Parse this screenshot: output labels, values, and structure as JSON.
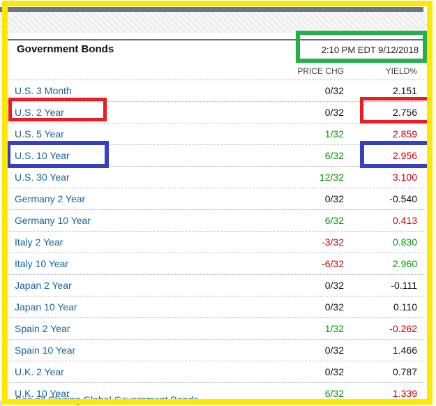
{
  "header": {
    "title": "Government Bonds",
    "timestamp": "2:10 PM EDT 9/12/2018"
  },
  "columns": [
    "PRICE CHG",
    "YIELD%"
  ],
  "table": {
    "rows": [
      {
        "label": "U.S. 3 Month",
        "price_chg": "0/32",
        "chg_color": "flat",
        "yield": "2.151",
        "yield_color": "flat"
      },
      {
        "label": "U.S. 2 Year",
        "price_chg": "0/32",
        "chg_color": "flat",
        "yield": "2.756",
        "yield_color": "flat"
      },
      {
        "label": "U.S. 5 Year",
        "price_chg": "1/32",
        "chg_color": "up",
        "yield": "2.859",
        "yield_color": "down"
      },
      {
        "label": "U.S. 10 Year",
        "price_chg": "6/32",
        "chg_color": "up",
        "yield": "2.956",
        "yield_color": "down"
      },
      {
        "label": "U.S. 30 Year",
        "price_chg": "12/32",
        "chg_color": "up",
        "yield": "3.100",
        "yield_color": "down"
      },
      {
        "label": "Germany 2 Year",
        "price_chg": "0/32",
        "chg_color": "flat",
        "yield": "-0.540",
        "yield_color": "flat"
      },
      {
        "label": "Germany 10 Year",
        "price_chg": "6/32",
        "chg_color": "up",
        "yield": "0.413",
        "yield_color": "down"
      },
      {
        "label": "Italy 2 Year",
        "price_chg": "-3/32",
        "chg_color": "down",
        "yield": "0.830",
        "yield_color": "up"
      },
      {
        "label": "Italy 10 Year",
        "price_chg": "-6/32",
        "chg_color": "down",
        "yield": "2.960",
        "yield_color": "up"
      },
      {
        "label": "Japan 2 Year",
        "price_chg": "0/32",
        "chg_color": "flat",
        "yield": "-0.111",
        "yield_color": "flat"
      },
      {
        "label": "Japan 10 Year",
        "price_chg": "0/32",
        "chg_color": "flat",
        "yield": "0.110",
        "yield_color": "flat"
      },
      {
        "label": "Spain 2 Year",
        "price_chg": "1/32",
        "chg_color": "up",
        "yield": "-0.262",
        "yield_color": "down"
      },
      {
        "label": "Spain 10 Year",
        "price_chg": "0/32",
        "chg_color": "flat",
        "yield": "1.466",
        "yield_color": "flat"
      },
      {
        "label": "U.K. 2 Year",
        "price_chg": "0/32",
        "chg_color": "flat",
        "yield": "0.787",
        "yield_color": "flat"
      },
      {
        "label": "U.K. 10 Year",
        "price_chg": "6/32",
        "chg_color": "up",
        "yield": "1.339",
        "yield_color": "down"
      }
    ]
  },
  "footer": {
    "link_label": "See all Closing Global Government Bonds"
  },
  "colors": {
    "up": "#009900",
    "down": "#cc0000",
    "neutral": "#111111",
    "link": "#15629e"
  },
  "annotations": {
    "frame_color": "#ffe800",
    "red_box_color": "#ed1c24",
    "blue_box_color": "#3640c0",
    "green_box_color": "#22b14c",
    "red_boxed_row": "U.S. 2 Year",
    "red_boxed_yield": "2.756",
    "blue_boxed_row": "U.S. 10 Year",
    "blue_boxed_yield": "2.956",
    "green_boxed_text": "2:10 PM EDT 9/12/2018"
  }
}
